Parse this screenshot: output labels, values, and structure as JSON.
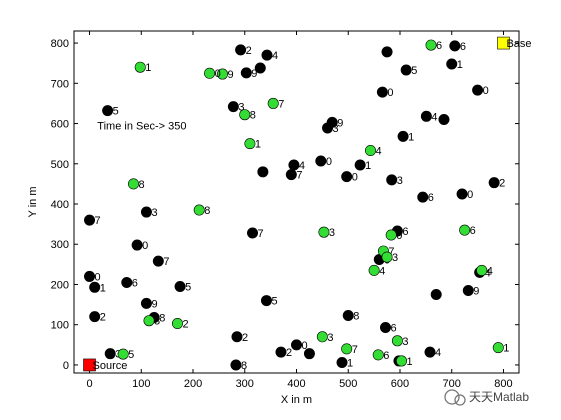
{
  "chart_data": {
    "type": "scatter",
    "xlabel": "X in m",
    "ylabel": "Y in m",
    "xlim": [
      -30,
      830
    ],
    "ylim": [
      -20,
      830
    ],
    "xticks": [
      0,
      100,
      200,
      300,
      400,
      500,
      600,
      700,
      800
    ],
    "yticks": [
      0,
      100,
      200,
      300,
      400,
      500,
      600,
      700,
      800
    ],
    "annotation": {
      "text": "Time in Sec-> 350",
      "x": 15,
      "y": 595
    },
    "source": {
      "label": "Source",
      "x": 0,
      "y": 0,
      "color": "#ff0000"
    },
    "base": {
      "label": "Base",
      "x": 800,
      "y": 800,
      "color": "#ffff00"
    },
    "series": [
      {
        "color": "#000000",
        "points": [
          {
            "x": 292,
            "y": 783,
            "label": "2"
          },
          {
            "x": 343,
            "y": 770,
            "label": "4"
          },
          {
            "x": 575,
            "y": 778,
            "label": ""
          },
          {
            "x": 706,
            "y": 793,
            "label": "6"
          },
          {
            "x": 700,
            "y": 748,
            "label": "1"
          },
          {
            "x": 330,
            "y": 738,
            "label": ""
          },
          {
            "x": 303,
            "y": 726,
            "label": "9"
          },
          {
            "x": 612,
            "y": 733,
            "label": "5"
          },
          {
            "x": 566,
            "y": 678,
            "label": "0"
          },
          {
            "x": 750,
            "y": 683,
            "label": "0"
          },
          {
            "x": 35,
            "y": 632,
            "label": "5"
          },
          {
            "x": 278,
            "y": 642,
            "label": "3"
          },
          {
            "x": 469,
            "y": 603,
            "label": "9"
          },
          {
            "x": 460,
            "y": 589,
            "label": "3"
          },
          {
            "x": 651,
            "y": 618,
            "label": "4"
          },
          {
            "x": 685,
            "y": 610,
            "label": ""
          },
          {
            "x": 606,
            "y": 568,
            "label": "1"
          },
          {
            "x": 395,
            "y": 497,
            "label": "4"
          },
          {
            "x": 447,
            "y": 507,
            "label": "0"
          },
          {
            "x": 523,
            "y": 497,
            "label": "1"
          },
          {
            "x": 335,
            "y": 480,
            "label": ""
          },
          {
            "x": 390,
            "y": 473,
            "label": "7"
          },
          {
            "x": 497,
            "y": 468,
            "label": "0"
          },
          {
            "x": 584,
            "y": 460,
            "label": "3"
          },
          {
            "x": 782,
            "y": 453,
            "label": "2"
          },
          {
            "x": 644,
            "y": 417,
            "label": "6"
          },
          {
            "x": 720,
            "y": 425,
            "label": "0"
          },
          {
            "x": 110,
            "y": 380,
            "label": "3"
          },
          {
            "x": 0,
            "y": 360,
            "label": "7"
          },
          {
            "x": 315,
            "y": 328,
            "label": "7"
          },
          {
            "x": 595,
            "y": 333,
            "label": "6"
          },
          {
            "x": 92,
            "y": 298,
            "label": "0"
          },
          {
            "x": 133,
            "y": 258,
            "label": "7"
          },
          {
            "x": 560,
            "y": 262,
            "label": "9"
          },
          {
            "x": 0,
            "y": 220,
            "label": "0"
          },
          {
            "x": 10,
            "y": 193,
            "label": "1"
          },
          {
            "x": 72,
            "y": 205,
            "label": "6"
          },
          {
            "x": 175,
            "y": 195,
            "label": "5"
          },
          {
            "x": 670,
            "y": 175,
            "label": ""
          },
          {
            "x": 732,
            "y": 185,
            "label": "9"
          },
          {
            "x": 754,
            "y": 230,
            "label": "4"
          },
          {
            "x": 110,
            "y": 153,
            "label": "9"
          },
          {
            "x": 125,
            "y": 118,
            "label": "8"
          },
          {
            "x": 342,
            "y": 160,
            "label": "5"
          },
          {
            "x": 10,
            "y": 120,
            "label": "2"
          },
          {
            "x": 500,
            "y": 123,
            "label": "8"
          },
          {
            "x": 572,
            "y": 93,
            "label": "6"
          },
          {
            "x": 285,
            "y": 70,
            "label": "2"
          },
          {
            "x": 400,
            "y": 50,
            "label": "0"
          },
          {
            "x": 370,
            "y": 32,
            "label": "2"
          },
          {
            "x": 40,
            "y": 28,
            "label": "3"
          },
          {
            "x": 488,
            "y": 6,
            "label": "1"
          },
          {
            "x": 658,
            "y": 32,
            "label": "4"
          },
          {
            "x": 425,
            "y": 28,
            "label": ""
          },
          {
            "x": 598,
            "y": 10,
            "label": ""
          },
          {
            "x": 283,
            "y": 0,
            "label": "8"
          }
        ]
      },
      {
        "color": "#33dd33",
        "points": [
          {
            "x": 98,
            "y": 740,
            "label": "1"
          },
          {
            "x": 257,
            "y": 723,
            "label": "9"
          },
          {
            "x": 232,
            "y": 725,
            "label": "0"
          },
          {
            "x": 355,
            "y": 650,
            "label": "7"
          },
          {
            "x": 300,
            "y": 622,
            "label": "8"
          },
          {
            "x": 310,
            "y": 550,
            "label": "1"
          },
          {
            "x": 543,
            "y": 533,
            "label": "4"
          },
          {
            "x": 85,
            "y": 450,
            "label": "8"
          },
          {
            "x": 212,
            "y": 385,
            "label": "8"
          },
          {
            "x": 453,
            "y": 330,
            "label": "3"
          },
          {
            "x": 583,
            "y": 323,
            "label": "0"
          },
          {
            "x": 725,
            "y": 335,
            "label": "6"
          },
          {
            "x": 568,
            "y": 283,
            "label": "7"
          },
          {
            "x": 575,
            "y": 268,
            "label": "3"
          },
          {
            "x": 550,
            "y": 235,
            "label": "4"
          },
          {
            "x": 758,
            "y": 235,
            "label": "4"
          },
          {
            "x": 115,
            "y": 110,
            "label": "8"
          },
          {
            "x": 170,
            "y": 103,
            "label": "2"
          },
          {
            "x": 450,
            "y": 70,
            "label": "3"
          },
          {
            "x": 497,
            "y": 40,
            "label": "7"
          },
          {
            "x": 558,
            "y": 25,
            "label": "6"
          },
          {
            "x": 595,
            "y": 60,
            "label": "3"
          },
          {
            "x": 603,
            "y": 10,
            "label": "1"
          },
          {
            "x": 790,
            "y": 43,
            "label": "1"
          },
          {
            "x": 660,
            "y": 795,
            "label": "6"
          },
          {
            "x": 65,
            "y": 27,
            "label": "5"
          }
        ]
      }
    ]
  },
  "watermark": "天天Matlab"
}
